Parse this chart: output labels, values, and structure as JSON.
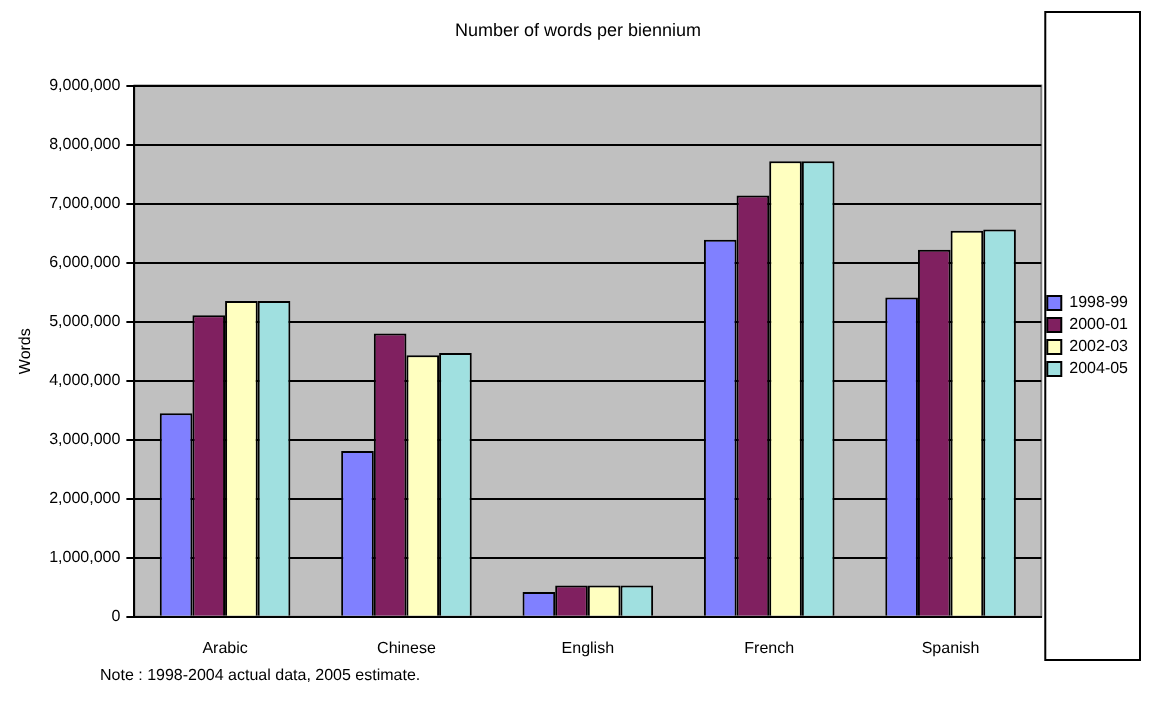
{
  "chart_data": {
    "type": "bar",
    "title": "Number of words per biennium",
    "ylabel": "Words",
    "categories": [
      "Arabic",
      "Chinese",
      "English",
      "French",
      "Spanish"
    ],
    "series": [
      {
        "name": "1998-99",
        "color": "#8080ff",
        "values": [
          3450000,
          2810000,
          420000,
          6390000,
          5410000
        ]
      },
      {
        "name": "2000-01",
        "color": "#802060",
        "values": [
          5110000,
          4800000,
          530000,
          7140000,
          6220000
        ]
      },
      {
        "name": "2002-03",
        "color": "#ffffc0",
        "values": [
          5350000,
          4430000,
          530000,
          7720000,
          6540000
        ]
      },
      {
        "name": "2004-05",
        "color": "#a0e0e0",
        "values": [
          5350000,
          4470000,
          530000,
          7720000,
          6560000
        ]
      }
    ],
    "ylim": [
      0,
      9000000
    ],
    "yticks": [
      {
        "value": 0,
        "label": "0"
      },
      {
        "value": 1000000,
        "label": "1,000,000"
      },
      {
        "value": 2000000,
        "label": "2,000,000"
      },
      {
        "value": 3000000,
        "label": "3,000,000"
      },
      {
        "value": 4000000,
        "label": "4,000,000"
      },
      {
        "value": 5000000,
        "label": "5,000,000"
      },
      {
        "value": 6000000,
        "label": "6,000,000"
      },
      {
        "value": 7000000,
        "label": "7,000,000"
      },
      {
        "value": 8000000,
        "label": "8,000,000"
      },
      {
        "value": 9000000,
        "label": "9,000,000"
      }
    ],
    "grid": "y",
    "legend": "right",
    "annotations": [
      "Note : 1998-2004 actual data, 2005 estimate."
    ]
  }
}
